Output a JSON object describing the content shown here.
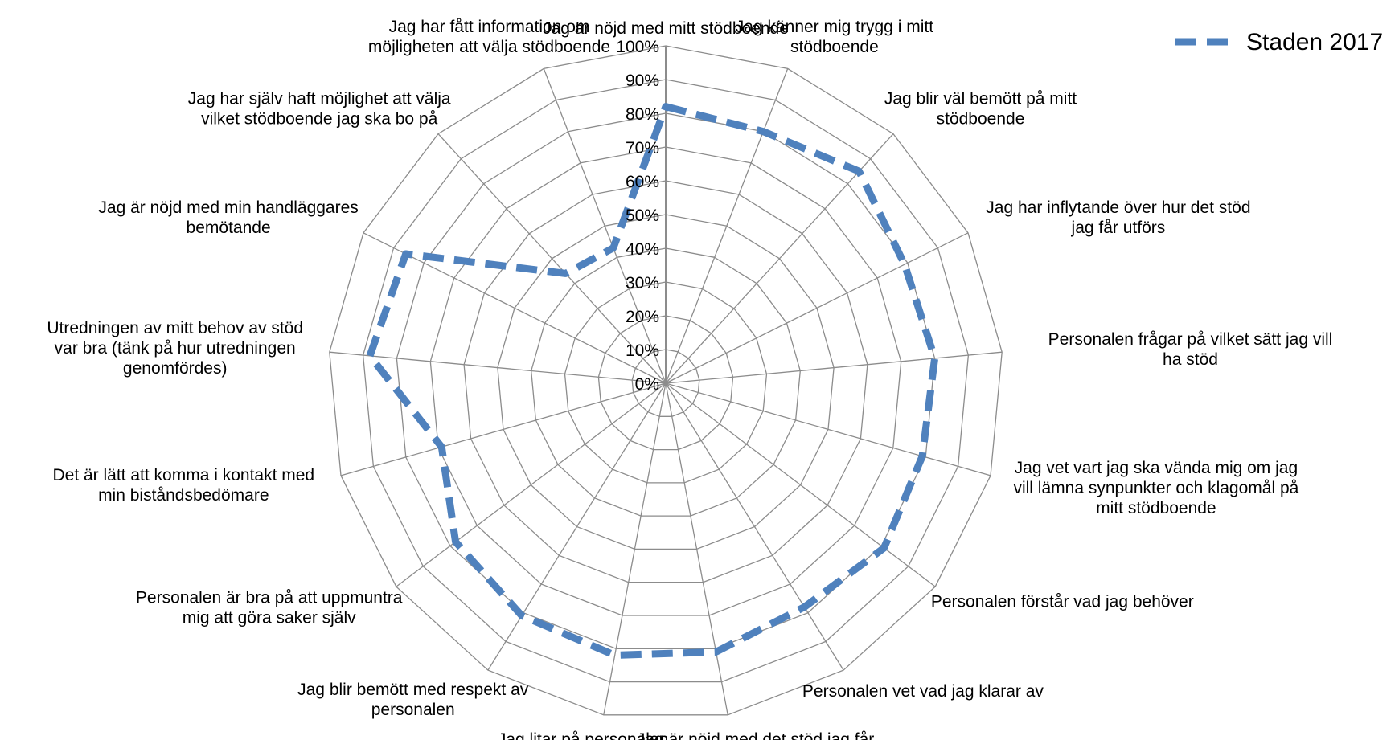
{
  "chart_data": {
    "type": "radar",
    "title": "",
    "rlim": [
      0,
      100
    ],
    "ticks": [
      "0%",
      "10%",
      "20%",
      "30%",
      "40%",
      "50%",
      "60%",
      "70%",
      "80%",
      "90%",
      "100%"
    ],
    "grid": true,
    "legend_position": "top-right",
    "categories": [
      [
        "Jag är nöjd med mitt stödboende"
      ],
      [
        "Jag känner mig trygg i mitt",
        "stödboende"
      ],
      [
        "Jag blir väl bemött på mitt",
        "stödboende"
      ],
      [
        "Jag har inflytande över hur det stöd",
        "jag får utförs"
      ],
      [
        "Personalen frågar på vilket sätt jag vill",
        "ha stöd"
      ],
      [
        "Jag vet vart jag ska vända mig om jag",
        "vill lämna synpunkter och klagomål på",
        "mitt stödboende"
      ],
      [
        "Personalen förstår vad jag behöver"
      ],
      [
        "Personalen vet vad jag klarar av"
      ],
      [
        "Jag är nöjd med det stöd jag får"
      ],
      [
        "Jag litar på personalen"
      ],
      [
        "Jag blir bemött med respekt av",
        "personalen"
      ],
      [
        "Personalen är bra på att uppmuntra",
        "mig att göra saker själv"
      ],
      [
        "Det är lätt att komma i kontakt med",
        "min biståndsbedömare"
      ],
      [
        "Utredningen av mitt behov av stöd",
        "var bra (tänk på hur utredningen",
        "genomfördes)"
      ],
      [
        "Jag är nöjd med min handläggares",
        "bemötande"
      ],
      [
        "Jag har själv haft möjlighet att välja",
        "vilket stödboende jag ska bo på"
      ],
      [
        "Jag har fått information om",
        "möjligheten att välja stödboende"
      ]
    ],
    "series": [
      {
        "name": "Staden 2017",
        "color": "#4f81bd",
        "style": "dashed",
        "values": [
          82,
          80,
          85,
          79,
          80,
          79,
          81,
          78,
          81,
          82,
          81,
          78,
          69,
          88,
          86,
          44,
          43
        ]
      }
    ]
  }
}
